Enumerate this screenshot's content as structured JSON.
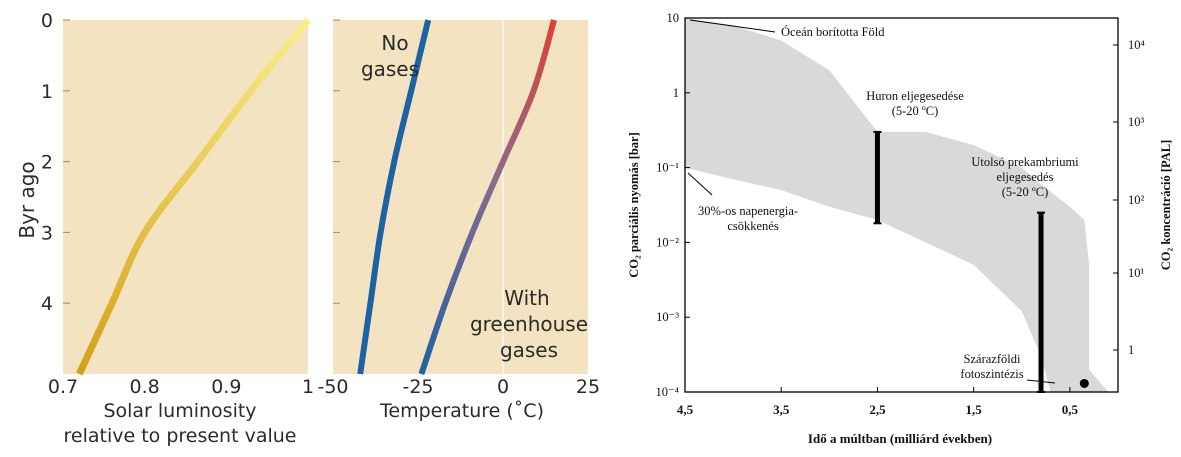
{
  "chart_data": [
    {
      "type": "line",
      "title": "",
      "ylabel": "Byr ago",
      "xlabel_lines": [
        "Solar luminosity",
        "relative to present value"
      ],
      "xlim": [
        0.7,
        1.0
      ],
      "ylim": [
        0,
        5
      ],
      "y_inverted": true,
      "xticks": [
        "0.7",
        "0.8",
        "0.9",
        "1"
      ],
      "yticks": [
        "0",
        "1",
        "2",
        "3",
        "4"
      ],
      "background": "#f4e3c1",
      "series": [
        {
          "colors": [
            "#d4a017",
            "#f8ee8a"
          ],
          "points": [
            [
              1.0,
              0
            ],
            [
              0.93,
              1
            ],
            [
              0.865,
              2
            ],
            [
              0.8,
              3
            ],
            [
              0.76,
              4
            ],
            [
              0.72,
              5
            ]
          ]
        }
      ]
    },
    {
      "type": "line",
      "title": "",
      "xlabel": "Temperature (˚C)",
      "xlim": [
        -50,
        25
      ],
      "ylim": [
        0,
        5
      ],
      "y_inverted": true,
      "xticks": [
        "-50",
        "-25",
        "0",
        "25"
      ],
      "background": "#f4e3c1",
      "series": [
        {
          "name_lines": [
            "No",
            "gases"
          ],
          "color": "#1d63a4",
          "points": [
            [
              -22,
              0
            ],
            [
              -27,
              1
            ],
            [
              -32,
              2
            ],
            [
              -36,
              3
            ],
            [
              -39,
              4
            ],
            [
              -42,
              5
            ]
          ]
        },
        {
          "name_lines": [
            "With",
            "greenhouse",
            "gases"
          ],
          "colors": [
            "#1d63a4",
            "#8c6a8e",
            "#e04030"
          ],
          "points": [
            [
              15,
              0
            ],
            [
              9,
              1
            ],
            [
              0,
              2
            ],
            [
              -9,
              3
            ],
            [
              -17,
              4
            ],
            [
              -24,
              5
            ]
          ]
        }
      ]
    },
    {
      "type": "area",
      "title": "",
      "ylabel": "CO₂ parciális nyomás [bar]",
      "y2label": "CO₂ koncentráció [PAL]",
      "xlabel": "Idő a múltban (milliárd években)",
      "x_reversed": true,
      "xlim": [
        4.5,
        0
      ],
      "ylim": [
        0.0001,
        10
      ],
      "yscale": "log",
      "xticks": [
        "4,5",
        "3,5",
        "2,5",
        "1,5",
        "0,5"
      ],
      "yticks": [
        "10",
        "1",
        "10⁻¹",
        "10⁻²",
        "10⁻³",
        "10⁻⁴"
      ],
      "y2ticks": [
        "10⁴",
        "10³",
        "10²",
        "10¹",
        "1"
      ],
      "band": {
        "color": "#d9d9d9",
        "upper": [
          [
            4.5,
            10
          ],
          [
            4.0,
            8
          ],
          [
            3.5,
            5
          ],
          [
            3.0,
            2
          ],
          [
            2.5,
            0.3
          ],
          [
            2.0,
            0.3
          ],
          [
            1.5,
            0.2
          ],
          [
            1.0,
            0.1
          ],
          [
            0.8,
            0.06
          ],
          [
            0.5,
            0.03
          ],
          [
            0.35,
            0.02
          ],
          [
            0.3,
            0.005
          ],
          [
            0.3,
            0.0002
          ],
          [
            0.1,
            0.0001
          ],
          [
            0.0,
            0.0001
          ]
        ],
        "lower": [
          [
            4.5,
            0.1
          ],
          [
            4.0,
            0.07
          ],
          [
            3.5,
            0.05
          ],
          [
            3.0,
            0.03
          ],
          [
            2.5,
            0.02
          ],
          [
            2.0,
            0.01
          ],
          [
            1.5,
            0.005
          ],
          [
            1.0,
            0.0012
          ],
          [
            0.8,
            0.0003
          ],
          [
            0.7,
            0.0001
          ]
        ]
      },
      "bars": [
        {
          "x": 2.5,
          "top": 0.3,
          "bottom": 0.018
        },
        {
          "x": 0.8,
          "top": 0.025,
          "bottom": 0.0001
        }
      ],
      "points": [
        {
          "x": 0.35,
          "y": 0.00013
        }
      ],
      "annotations": [
        {
          "lines": [
            "Óceán borította Föld"
          ]
        },
        {
          "lines": [
            "30%-os napenergia-",
            "csökkenés"
          ]
        },
        {
          "lines": [
            "Huron eljegesedése",
            "(5-20 ºC)"
          ]
        },
        {
          "lines": [
            "Utolsó prekambriumi",
            "eljegesedés",
            "(5-20 ºC)"
          ]
        },
        {
          "lines": [
            "Szárazföldi",
            "fotoszintézis"
          ]
        }
      ]
    }
  ]
}
